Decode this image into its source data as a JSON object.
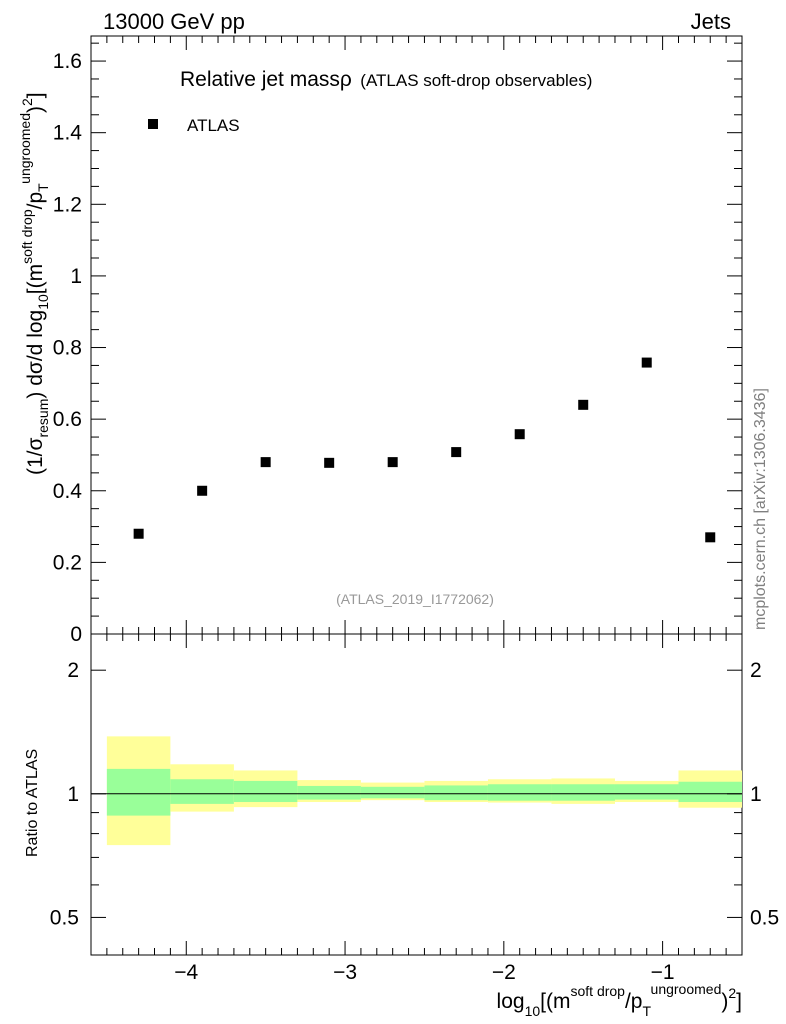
{
  "header": {
    "left": "13000 GeV pp",
    "right": "Jets"
  },
  "side_label": "mcplots.cern.ch [arXiv:1306.3436]",
  "chart_data": {
    "type": "scatter",
    "title_main": "Relative jet massρ",
    "title_sub": "(ATLAS soft-drop observables)",
    "analysis_label": "(ATLAS_2019_I1772062)",
    "legend": [
      {
        "name": "ATLAS",
        "marker": "square",
        "color": "#000000"
      }
    ],
    "legend_position": "top-left",
    "xlim": [
      -4.6,
      -0.5
    ],
    "main_ylim": [
      0,
      1.67
    ],
    "ratio_ylim": [
      0.405,
      2.45
    ],
    "ratio_log_scale": true,
    "ylabel_main": "(1/σresum) dσ/d log10[(msoft drop/pTungroomed)2]",
    "ylabel_ratio": "Ratio to ATLAS",
    "xlabel": "log10[(msoft drop/pTungroomed)2]",
    "x_major_ticks": [
      -4,
      -3,
      -2,
      -1
    ],
    "x_tick_labels": [
      "−4",
      "−3",
      "−2",
      "−1"
    ],
    "main_y_ticks": [
      0,
      0.2,
      0.4,
      0.6,
      0.8,
      1,
      1.2,
      1.4,
      1.6
    ],
    "main_y_tick_labels": [
      "0",
      "0.2",
      "0.4",
      "0.6",
      "0.8",
      "1",
      "1.2",
      "1.4",
      "1.6"
    ],
    "ratio_y_ticks": [
      0.5,
      1,
      2
    ],
    "ratio_y_tick_labels": [
      "0.5",
      "1",
      "2"
    ],
    "series": [
      {
        "name": "ATLAS",
        "x": [
          -4.3,
          -3.9,
          -3.5,
          -3.1,
          -2.7,
          -2.3,
          -1.9,
          -1.5,
          -1.1,
          -0.7
        ],
        "y": [
          0.28,
          0.4,
          0.48,
          0.478,
          0.48,
          0.508,
          0.558,
          0.64,
          0.758,
          0.27
        ]
      }
    ],
    "ratio_bands": {
      "bins": [
        [
          -4.5,
          -4.1
        ],
        [
          -4.1,
          -3.7
        ],
        [
          -3.7,
          -3.3
        ],
        [
          -3.3,
          -2.9
        ],
        [
          -2.9,
          -2.5
        ],
        [
          -2.5,
          -2.1
        ],
        [
          -2.1,
          -1.7
        ],
        [
          -1.7,
          -1.3
        ],
        [
          -1.3,
          -0.9
        ],
        [
          -0.9,
          -0.5
        ]
      ],
      "inner_low": [
        0.885,
        0.945,
        0.955,
        0.968,
        0.975,
        0.965,
        0.962,
        0.962,
        0.968,
        0.955
      ],
      "inner_high": [
        1.15,
        1.085,
        1.075,
        1.045,
        1.04,
        1.048,
        1.055,
        1.055,
        1.055,
        1.07
      ],
      "outer_low": [
        0.75,
        0.905,
        0.928,
        0.955,
        0.965,
        0.955,
        0.952,
        0.945,
        0.955,
        0.925
      ],
      "outer_high": [
        1.38,
        1.18,
        1.14,
        1.08,
        1.065,
        1.075,
        1.085,
        1.09,
        1.075,
        1.14
      ],
      "inner_color": "#99ff99",
      "outer_color": "#ffff99",
      "reference_value": 1
    }
  }
}
